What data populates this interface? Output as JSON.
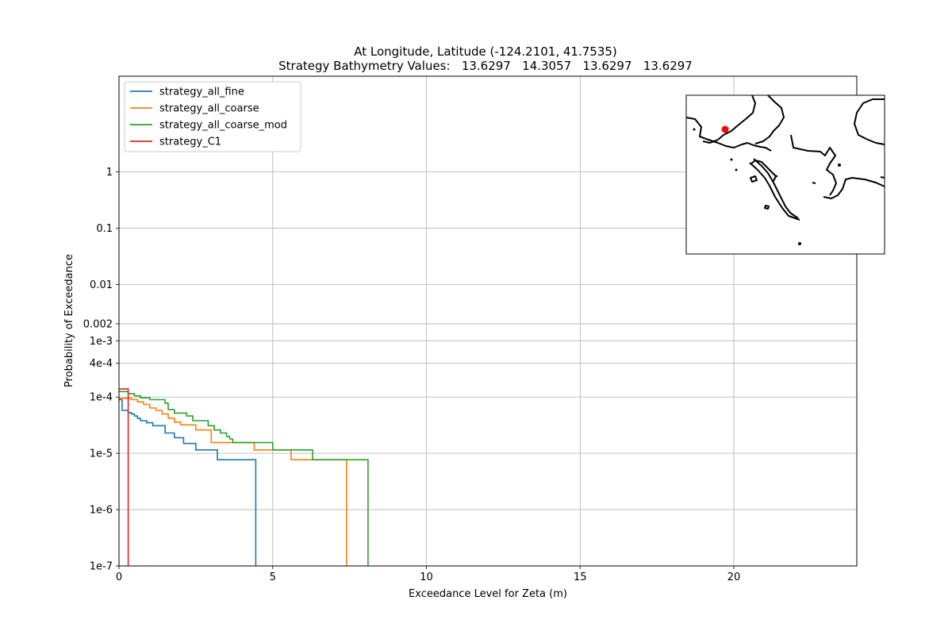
{
  "chart_data": {
    "type": "line",
    "title": "At Longitude, Latitude (-124.2101,  41.7535)",
    "subtitle": "Strategy Bathymetry Values:   13.6297   14.3057   13.6297   13.6297",
    "xlabel": "Exceedance Level for Zeta (m)",
    "ylabel": "Probability of Exceedance",
    "xlim": [
      0,
      24
    ],
    "ylim": [
      1e-07,
      50
    ],
    "yscale": "log",
    "grid": true,
    "legend_position": "upper-left",
    "x_ticks": [
      {
        "value": 0,
        "label": "0"
      },
      {
        "value": 5,
        "label": "5"
      },
      {
        "value": 10,
        "label": "10"
      },
      {
        "value": 15,
        "label": "15"
      },
      {
        "value": 20,
        "label": "20"
      }
    ],
    "y_ticks": [
      {
        "value": 1e-07,
        "label": "1e-7"
      },
      {
        "value": 1e-06,
        "label": "1e-6"
      },
      {
        "value": 1e-05,
        "label": "1e-5"
      },
      {
        "value": 0.0001,
        "label": "1e-4"
      },
      {
        "value": 0.0004,
        "label": "4e-4"
      },
      {
        "value": 0.001,
        "label": "1e-3"
      },
      {
        "value": 0.002,
        "label": "0.002"
      },
      {
        "value": 0.01,
        "label": "0.01"
      },
      {
        "value": 0.1,
        "label": "0.1"
      },
      {
        "value": 1,
        "label": "1"
      }
    ],
    "series": [
      {
        "name": "strategy_all_fine",
        "color": "#1f77b4",
        "x": [
          0,
          0.1,
          0.3,
          0.4,
          0.5,
          0.6,
          0.7,
          0.9,
          1.1,
          1.5,
          1.8,
          2.1,
          2.5,
          3.2,
          4.45,
          4.45
        ],
        "y": [
          9e-05,
          5.8e-05,
          5.3e-05,
          5e-05,
          4.6e-05,
          4.2e-05,
          3.8e-05,
          3.5e-05,
          3.1e-05,
          2.3e-05,
          1.9e-05,
          1.5e-05,
          1.15e-05,
          7.7e-06,
          3.9e-06,
          1e-07
        ]
      },
      {
        "name": "strategy_all_coarse",
        "color": "#ff7f0e",
        "x": [
          0,
          0.4,
          0.6,
          0.8,
          1.0,
          1.2,
          1.4,
          1.6,
          1.8,
          2.0,
          2.5,
          3.0,
          4.4,
          5.6,
          7.4,
          7.4
        ],
        "y": [
          9.5e-05,
          9e-05,
          8.2e-05,
          7.4e-05,
          6.4e-05,
          5.8e-05,
          5e-05,
          4.2e-05,
          3.6e-05,
          3.2e-05,
          2.6e-05,
          1.55e-05,
          1.15e-05,
          7.7e-06,
          3.9e-06,
          1e-07
        ]
      },
      {
        "name": "strategy_all_coarse_mod",
        "color": "#2ca02c",
        "x": [
          0,
          0.3,
          0.5,
          0.7,
          1.0,
          1.5,
          1.6,
          1.8,
          2.2,
          2.4,
          2.9,
          3.1,
          3.3,
          3.5,
          3.6,
          3.7,
          5.0,
          6.3,
          8.1,
          8.1
        ],
        "y": [
          0.000125,
          0.000115,
          0.000105,
          9.7e-05,
          9e-05,
          7.8e-05,
          6e-05,
          5.2e-05,
          4.6e-05,
          3.8e-05,
          3.1e-05,
          2.6e-05,
          2.3e-05,
          2e-05,
          1.8e-05,
          1.55e-05,
          1.15e-05,
          7.7e-06,
          3.9e-06,
          1e-07
        ]
      },
      {
        "name": "strategy_C1",
        "color": "#d62728",
        "x": [
          0,
          0.3,
          0.3
        ],
        "y": [
          0.00014,
          0.00014,
          1e-07
        ]
      }
    ],
    "inset_map": {
      "description_marker_color": "#ff0000",
      "marker": "red dot at station location"
    }
  }
}
